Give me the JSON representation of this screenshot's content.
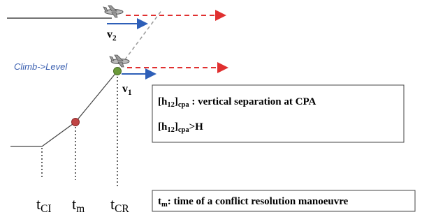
{
  "diagram": {
    "annotation": "Climb->Level",
    "velocities": [
      {
        "symbol": "v",
        "subscript": "2"
      },
      {
        "symbol": "v",
        "subscript": "1"
      }
    ],
    "times": [
      {
        "symbol": "t",
        "subscript": "CI"
      },
      {
        "symbol": "t",
        "subscript": "m"
      },
      {
        "symbol": "t",
        "subscript": "CR"
      }
    ],
    "box1": {
      "line1": {
        "open": "[h",
        "sub1": "12",
        "close": "]",
        "sub2": "cpa",
        "text": " : vertical separation at CPA"
      },
      "line2": {
        "open": "[h",
        "sub1": "12",
        "close": "]",
        "sub2": "cpa",
        "text": ">H"
      }
    },
    "box2": {
      "symbol": "t",
      "subscript": "m",
      "text": ": time of a conflict resolution manoeuvre"
    }
  }
}
